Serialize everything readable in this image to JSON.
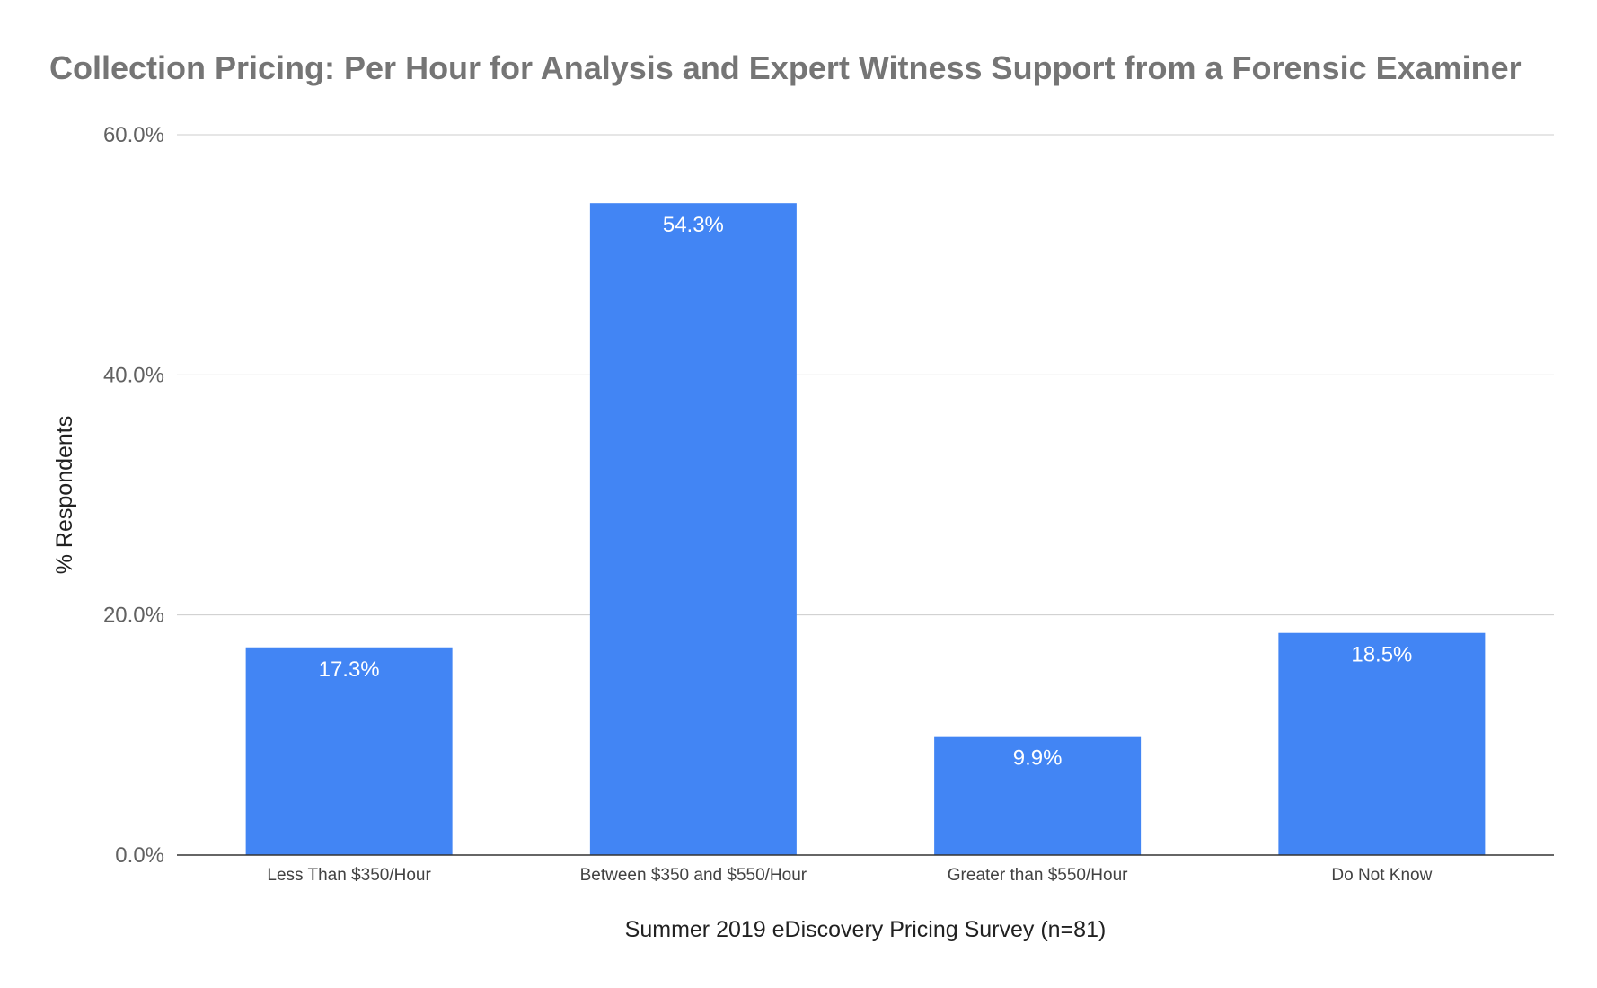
{
  "chart_data": {
    "type": "bar",
    "title": "Collection Pricing: Per Hour for Analysis and Expert Witness Support from a Forensic Examiner",
    "xlabel": "Summer 2019 eDiscovery Pricing Survey (n=81)",
    "ylabel": "% Respondents",
    "categories": [
      "Less Than $350/Hour",
      "Between $350 and $550/Hour",
      "Greater than $550/Hour",
      "Do Not Know"
    ],
    "values": [
      17.3,
      54.3,
      9.9,
      18.5
    ],
    "data_labels": [
      "17.3%",
      "54.3%",
      "9.9%",
      "18.5%"
    ],
    "ylim": [
      0,
      60
    ],
    "yticks": [
      0,
      20,
      40,
      60
    ],
    "ytick_labels": [
      "0.0%",
      "20.0%",
      "40.0%",
      "60.0%"
    ],
    "grid": true,
    "legend": "none",
    "colors": {
      "bar": "#4285f4",
      "grid": "#cccccc",
      "axis": "#333333"
    }
  }
}
